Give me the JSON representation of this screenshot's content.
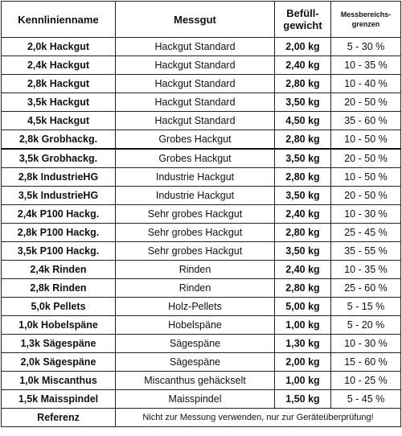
{
  "table": {
    "headers": {
      "name": "Kennlinienname",
      "gut": "Messgut",
      "weight_line1": "Befüll-",
      "weight_line2": "gewicht",
      "range_line1": "Messbereichs-",
      "range_line2": "grenzen"
    },
    "rows": [
      {
        "name": "2,0k Hackgut",
        "gut": "Hackgut Standard",
        "weight": "2,00 kg",
        "range": "5 - 30 %"
      },
      {
        "name": "2,4k Hackgut",
        "gut": "Hackgut Standard",
        "weight": "2,40 kg",
        "range": "10 - 35 %"
      },
      {
        "name": "2,8k Hackgut",
        "gut": "Hackgut Standard",
        "weight": "2,80 kg",
        "range": "10 - 40 %"
      },
      {
        "name": "3,5k Hackgut",
        "gut": "Hackgut Standard",
        "weight": "3,50 kg",
        "range": "20 - 50 %"
      },
      {
        "name": "4,5k Hackgut",
        "gut": "Hackgut Standard",
        "weight": "4,50 kg",
        "range": "35 - 60 %"
      },
      {
        "name": "2,8k Grobhackg.",
        "gut": "Grobes Hackgut",
        "weight": "2,80 kg",
        "range": "10 - 50 %"
      },
      {
        "name": "3,5k Grobhackg.",
        "gut": "Grobes Hackgut",
        "weight": "3,50 kg",
        "range": "20 - 50 %"
      },
      {
        "name": "2,8k IndustrieHG",
        "gut": "Industrie Hackgut",
        "weight": "2,80 kg",
        "range": "10 - 50 %"
      },
      {
        "name": "3,5k IndustrieHG",
        "gut": "Industrie Hackgut",
        "weight": "3,50 kg",
        "range": "20 - 50 %"
      },
      {
        "name": "2,4k P100 Hackg.",
        "gut": "Sehr grobes Hackgut",
        "weight": "2,40 kg",
        "range": "10 - 30 %"
      },
      {
        "name": "2,8k P100 Hackg.",
        "gut": "Sehr grobes Hackgut",
        "weight": "2,80 kg",
        "range": "25 - 45 %"
      },
      {
        "name": "3,5k P100 Hackg.",
        "gut": "Sehr grobes Hackgut",
        "weight": "3,50 kg",
        "range": "35 - 55 %"
      },
      {
        "name": "2,4k Rinden",
        "gut": "Rinden",
        "weight": "2,40 kg",
        "range": "10 - 35 %"
      },
      {
        "name": "2,8k Rinden",
        "gut": "Rinden",
        "weight": "2,80 kg",
        "range": "25 - 60 %"
      },
      {
        "name": "5,0k Pellets",
        "gut": "Holz-Pellets",
        "weight": "5,00 kg",
        "range": "5 - 15 %"
      },
      {
        "name": "1,0k Hobelspäne",
        "gut": "Hobelspäne",
        "weight": "1,00 kg",
        "range": "5 - 20 %"
      },
      {
        "name": "1,3k Sägespäne",
        "gut": "Sägespäne",
        "weight": "1,30 kg",
        "range": "10 - 30 %"
      },
      {
        "name": "2,0k Sägespäne",
        "gut": "Sägespäne",
        "weight": "2,00 kg",
        "range": "15 - 60 %"
      },
      {
        "name": "1,0k Miscanthus",
        "gut": "Miscanthus gehäckselt",
        "weight": "1,00 kg",
        "range": "10 - 25 %"
      },
      {
        "name": "1,5k Maisspindel",
        "gut": "Maisspindel",
        "weight": "1,50 kg",
        "range": "5 - 45 %"
      }
    ],
    "reference": {
      "name": "Referenz",
      "note": "Nicht zur Messung verwenden, nur zur Geräteüberprüfung!"
    }
  }
}
